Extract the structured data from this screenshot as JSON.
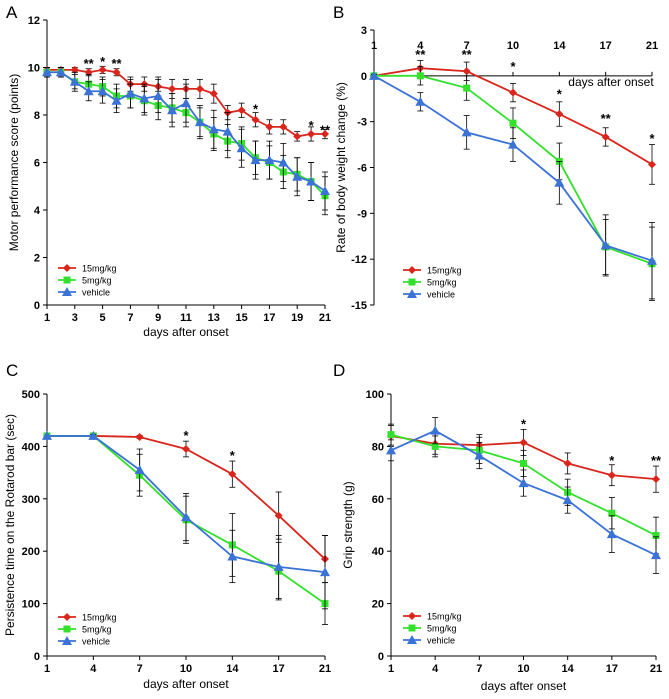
{
  "colors": {
    "s15": "#d9261c",
    "s5": "#33e02c",
    "vehicle": "#3a72d6",
    "axis": "#000000",
    "err": "#000000"
  },
  "chart_data": [
    {
      "panel": "A",
      "type": "line",
      "xlabel": "days after onset",
      "ylabel": "Motor performance score (points)",
      "xlim": [
        1,
        21
      ],
      "ylim": [
        0,
        12
      ],
      "x_ticks": [
        "1",
        "3",
        "5",
        "7",
        "9",
        "11",
        "13",
        "15",
        "17",
        "19",
        "21"
      ],
      "x_tick_values": [
        1,
        3,
        5,
        7,
        9,
        11,
        13,
        15,
        17,
        19,
        21
      ],
      "y_ticks": [
        "0",
        "2",
        "4",
        "6",
        "8",
        "10",
        "12"
      ],
      "y_tick_values": [
        0,
        2,
        4,
        6,
        8,
        10,
        12
      ],
      "x": [
        1,
        2,
        3,
        4,
        5,
        6,
        7,
        8,
        9,
        10,
        11,
        12,
        13,
        14,
        15,
        16,
        17,
        18,
        19,
        20,
        21
      ],
      "series": [
        {
          "name": "15mg/kg",
          "marker": "diamond",
          "color_key": "s15",
          "values": [
            9.9,
            9.9,
            9.9,
            9.8,
            9.9,
            9.8,
            9.3,
            9.3,
            9.2,
            9.1,
            9.1,
            9.1,
            8.9,
            8.1,
            8.2,
            7.8,
            7.5,
            7.5,
            7.1,
            7.2,
            7.2
          ],
          "errors": [
            0.1,
            0.1,
            0.1,
            0.15,
            0.15,
            0.15,
            0.3,
            0.3,
            0.4,
            0.4,
            0.4,
            0.4,
            0.4,
            0.3,
            0.3,
            0.3,
            0.3,
            0.3,
            0.2,
            0.3,
            0.2
          ]
        },
        {
          "name": "5mg/kg",
          "marker": "square",
          "color_key": "s5",
          "values": [
            9.8,
            9.8,
            9.4,
            9.3,
            9.2,
            8.8,
            8.8,
            8.6,
            8.4,
            8.3,
            8.1,
            7.7,
            7.2,
            6.9,
            6.8,
            6.2,
            6.0,
            5.6,
            5.5,
            5.2,
            4.6
          ],
          "errors": [
            0.2,
            0.2,
            0.3,
            0.4,
            0.4,
            0.5,
            0.5,
            0.6,
            0.6,
            0.6,
            0.6,
            0.6,
            0.7,
            0.7,
            0.7,
            0.7,
            0.7,
            0.7,
            0.7,
            0.8,
            0.8
          ]
        },
        {
          "name": "vehicle",
          "marker": "triangle",
          "color_key": "vehicle",
          "values": [
            9.8,
            9.8,
            9.4,
            9.0,
            9.0,
            8.6,
            8.9,
            8.7,
            8.8,
            8.2,
            8.5,
            7.7,
            7.4,
            7.3,
            6.6,
            6.1,
            6.1,
            6.0,
            5.4,
            5.2,
            4.8
          ],
          "errors": [
            0.2,
            0.2,
            0.4,
            0.4,
            0.5,
            0.5,
            0.6,
            0.6,
            0.7,
            0.7,
            0.8,
            0.7,
            0.8,
            0.8,
            0.8,
            0.8,
            0.8,
            0.8,
            0.8,
            0.8,
            0.8
          ]
        }
      ],
      "legend": [
        "15mg/kg",
        "5mg/kg",
        "vehicle"
      ],
      "legend_position": "bottom-left",
      "annotations": [
        {
          "text": "**",
          "x": 4,
          "y": 10.1
        },
        {
          "text": "*",
          "x": 5,
          "y": 10.2
        },
        {
          "text": "**",
          "x": 6,
          "y": 10.1
        },
        {
          "text": "*",
          "x": 16,
          "y": 8.2
        },
        {
          "text": "*",
          "x": 20,
          "y": 7.5
        },
        {
          "text": "**",
          "x": 21,
          "y": 7.3
        }
      ]
    },
    {
      "panel": "B",
      "type": "line",
      "xlabel": "days after onset",
      "ylabel": "Rate of body weight change (%)",
      "ylim": [
        -15,
        3
      ],
      "x_ticks": [
        "1",
        "4",
        "7",
        "10",
        "14",
        "17",
        "21"
      ],
      "y_ticks": [
        "3",
        "0",
        "-3",
        "-6",
        "-9",
        "-12",
        "-15"
      ],
      "y_tick_values": [
        3,
        0,
        -3,
        -6,
        -9,
        -12,
        -15
      ],
      "x": [
        "1",
        "4",
        "7",
        "10",
        "14",
        "17",
        "21"
      ],
      "series": [
        {
          "name": "15mg/kg",
          "marker": "diamond",
          "color_key": "s15",
          "values": [
            0,
            0.5,
            0.3,
            -1.1,
            -2.5,
            -4.0,
            -5.8
          ],
          "errors": [
            0.1,
            0.5,
            0.6,
            0.6,
            0.8,
            0.6,
            1.3
          ]
        },
        {
          "name": "5mg/kg",
          "marker": "square",
          "color_key": "s5",
          "values": [
            0,
            0,
            -0.8,
            -3.1,
            -5.6,
            -11.2,
            -12.3
          ],
          "errors": [
            0.1,
            0.6,
            0.8,
            1.0,
            1.2,
            1.8,
            2.4
          ]
        },
        {
          "name": "vehicle",
          "marker": "triangle",
          "color_key": "vehicle",
          "values": [
            0,
            -1.7,
            -3.7,
            -4.5,
            -7.0,
            -11.1,
            -12.1
          ],
          "errors": [
            0.1,
            0.6,
            1.1,
            1.1,
            1.4,
            2.0,
            2.5
          ]
        }
      ],
      "legend": [
        "15mg/kg",
        "5mg/kg",
        "vehicle"
      ],
      "legend_position": "bottom-left",
      "annotations": [
        {
          "text": "**",
          "x": "4",
          "y": 1.3
        },
        {
          "text": "**",
          "x": "7",
          "y": 1.3
        },
        {
          "text": "*",
          "x": "10",
          "y": 0.5
        },
        {
          "text": "*",
          "x": "14",
          "y": -1.3
        },
        {
          "text": "**",
          "x": "17",
          "y": -2.9
        },
        {
          "text": "*",
          "x": "21",
          "y": -4.2
        }
      ]
    },
    {
      "panel": "C",
      "type": "line",
      "xlabel": "days after onset",
      "ylabel": "Persistence time on the Rotarod bar (sec)",
      "ylim": [
        0,
        500
      ],
      "x_ticks": [
        "1",
        "4",
        "7",
        "10",
        "14",
        "17",
        "21"
      ],
      "y_ticks": [
        "0",
        "100",
        "200",
        "300",
        "400",
        "500"
      ],
      "y_tick_values": [
        0,
        100,
        200,
        300,
        400,
        500
      ],
      "x": [
        "1",
        "4",
        "7",
        "10",
        "14",
        "17",
        "21"
      ],
      "series": [
        {
          "name": "15mg/kg",
          "marker": "diamond",
          "color_key": "s15",
          "values": [
            420,
            420,
            418,
            395,
            347,
            268,
            185
          ],
          "errors": [
            0,
            3,
            3,
            15,
            25,
            45,
            45
          ]
        },
        {
          "name": "5mg/kg",
          "marker": "square",
          "color_key": "s5",
          "values": [
            420,
            420,
            345,
            260,
            212,
            162,
            100
          ],
          "errors": [
            0,
            3,
            40,
            45,
            60,
            55,
            40
          ]
        },
        {
          "name": "vehicle",
          "marker": "triangle",
          "color_key": "vehicle",
          "values": [
            420,
            420,
            355,
            265,
            190,
            170,
            160
          ],
          "errors": [
            0,
            3,
            40,
            45,
            50,
            60,
            70
          ]
        }
      ],
      "legend": [
        "15mg/kg",
        "5mg/kg",
        "vehicle"
      ],
      "legend_position": "bottom-left",
      "annotations": [
        {
          "text": "*",
          "x": "10",
          "y": 418
        },
        {
          "text": "*",
          "x": "14",
          "y": 380
        }
      ]
    },
    {
      "panel": "D",
      "type": "line",
      "xlabel": "days after onset",
      "ylabel": "Grip strength (g)",
      "ylim": [
        0,
        100
      ],
      "x_ticks": [
        "1",
        "4",
        "7",
        "10",
        "14",
        "17",
        "21"
      ],
      "y_ticks": [
        "0",
        "20",
        "40",
        "60",
        "80",
        "100"
      ],
      "y_tick_values": [
        0,
        20,
        40,
        60,
        80,
        100
      ],
      "x": [
        "1",
        "4",
        "7",
        "10",
        "14",
        "17",
        "21"
      ],
      "series": [
        {
          "name": "15mg/kg",
          "marker": "diamond",
          "color_key": "s15",
          "values": [
            84,
            81,
            80.5,
            81.5,
            73.5,
            69,
            67.5
          ],
          "errors": [
            4,
            4,
            4,
            5,
            4,
            4,
            5
          ]
        },
        {
          "name": "5mg/kg",
          "marker": "square",
          "color_key": "s5",
          "values": [
            84.5,
            80,
            78.5,
            73.5,
            62.5,
            54.5,
            46
          ],
          "errors": [
            4,
            4,
            5,
            5,
            5,
            6,
            7
          ]
        },
        {
          "name": "vehicle",
          "marker": "triangle",
          "color_key": "vehicle",
          "values": [
            78.5,
            86,
            76.5,
            66,
            59.5,
            46.5,
            38.5
          ],
          "errors": [
            4,
            5,
            5,
            5,
            5,
            7,
            7
          ]
        }
      ],
      "legend": [
        "15mg/kg",
        "5mg/kg",
        "vehicle"
      ],
      "legend_position": "bottom-left",
      "annotations": [
        {
          "text": "*",
          "x": "10",
          "y": 88
        },
        {
          "text": "*",
          "x": "17",
          "y": 74
        },
        {
          "text": "**",
          "x": "21",
          "y": 74
        }
      ]
    }
  ]
}
